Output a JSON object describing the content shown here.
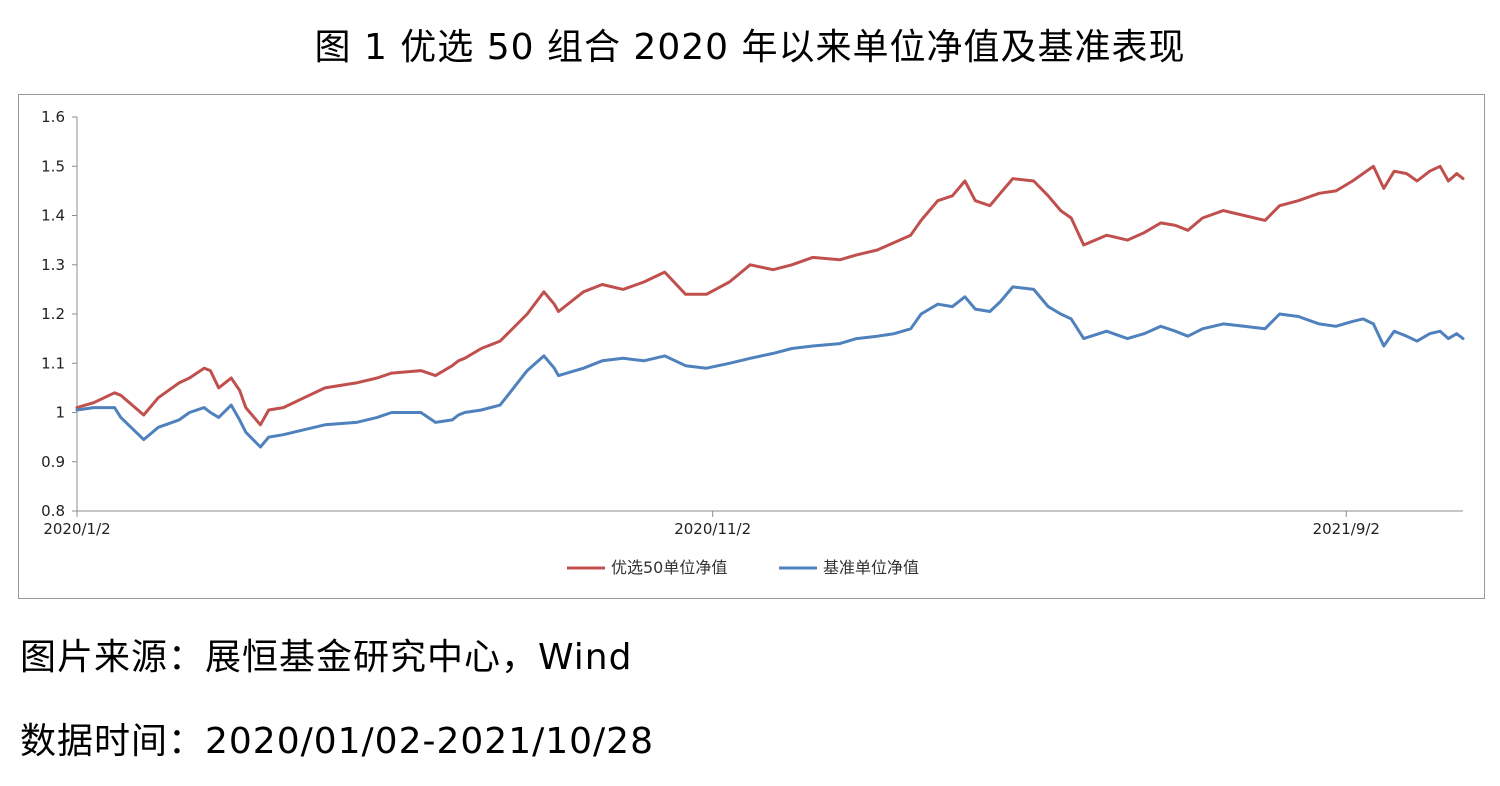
{
  "title": "图 1 优选 50 组合 2020 年以来单位净值及基准表现",
  "source": "图片来源：展恒基金研究中心，Wind",
  "period": "数据时间：2020/01/02-2021/10/28",
  "chart_data": {
    "type": "line",
    "ylim": [
      0.8,
      1.6
    ],
    "yticks": [
      "0.8",
      "0.9",
      "1",
      "1.1",
      "1.2",
      "1.3",
      "1.4",
      "1.5",
      "1.6"
    ],
    "xlim": [
      "2020-01-02",
      "2021-10-28"
    ],
    "xticks": [
      {
        "date": "2020-01-02",
        "label": "2020/1/2"
      },
      {
        "date": "2020-11-02",
        "label": "2020/11/2"
      },
      {
        "date": "2021-09-02",
        "label": "2021/9/2"
      }
    ],
    "grid": false,
    "legend": "bottom",
    "series": [
      {
        "name": "优选50单位净值",
        "color": "#c0504d",
        "points": [
          [
            "2020-01-02",
            1.01
          ],
          [
            "2020-01-10",
            1.02
          ],
          [
            "2020-01-20",
            1.04
          ],
          [
            "2020-01-23",
            1.035
          ],
          [
            "2020-02-03",
            0.995
          ],
          [
            "2020-02-10",
            1.03
          ],
          [
            "2020-02-20",
            1.06
          ],
          [
            "2020-02-25",
            1.07
          ],
          [
            "2020-03-03",
            1.09
          ],
          [
            "2020-03-06",
            1.085
          ],
          [
            "2020-03-10",
            1.05
          ],
          [
            "2020-03-16",
            1.07
          ],
          [
            "2020-03-20",
            1.045
          ],
          [
            "2020-03-23",
            1.01
          ],
          [
            "2020-03-30",
            0.975
          ],
          [
            "2020-04-03",
            1.005
          ],
          [
            "2020-04-10",
            1.01
          ],
          [
            "2020-04-20",
            1.03
          ],
          [
            "2020-04-30",
            1.05
          ],
          [
            "2020-05-15",
            1.06
          ],
          [
            "2020-05-25",
            1.07
          ],
          [
            "2020-06-01",
            1.08
          ],
          [
            "2020-06-15",
            1.085
          ],
          [
            "2020-06-22",
            1.075
          ],
          [
            "2020-06-30",
            1.095
          ],
          [
            "2020-07-03",
            1.105
          ],
          [
            "2020-07-06",
            1.11
          ],
          [
            "2020-07-14",
            1.13
          ],
          [
            "2020-07-23",
            1.145
          ],
          [
            "2020-08-05",
            1.2
          ],
          [
            "2020-08-13",
            1.245
          ],
          [
            "2020-08-18",
            1.22
          ],
          [
            "2020-08-20",
            1.205
          ],
          [
            "2020-09-01",
            1.245
          ],
          [
            "2020-09-10",
            1.26
          ],
          [
            "2020-09-20",
            1.25
          ],
          [
            "2020-09-30",
            1.265
          ],
          [
            "2020-10-10",
            1.285
          ],
          [
            "2020-10-20",
            1.24
          ],
          [
            "2020-10-30",
            1.24
          ],
          [
            "2020-11-10",
            1.265
          ],
          [
            "2020-11-20",
            1.3
          ],
          [
            "2020-12-01",
            1.29
          ],
          [
            "2020-12-10",
            1.3
          ],
          [
            "2020-12-20",
            1.315
          ],
          [
            "2021-01-02",
            1.31
          ],
          [
            "2021-01-10",
            1.32
          ],
          [
            "2021-01-20",
            1.33
          ],
          [
            "2021-01-28",
            1.345
          ],
          [
            "2021-02-05",
            1.36
          ],
          [
            "2021-02-10",
            1.39
          ],
          [
            "2021-02-18",
            1.43
          ],
          [
            "2021-02-25",
            1.44
          ],
          [
            "2021-03-03",
            1.47
          ],
          [
            "2021-03-08",
            1.43
          ],
          [
            "2021-03-15",
            1.42
          ],
          [
            "2021-03-20",
            1.445
          ],
          [
            "2021-03-26",
            1.475
          ],
          [
            "2021-04-05",
            1.47
          ],
          [
            "2021-04-12",
            1.44
          ],
          [
            "2021-04-18",
            1.41
          ],
          [
            "2021-04-23",
            1.395
          ],
          [
            "2021-04-29",
            1.34
          ],
          [
            "2021-05-10",
            1.36
          ],
          [
            "2021-05-20",
            1.35
          ],
          [
            "2021-05-28",
            1.365
          ],
          [
            "2021-06-05",
            1.385
          ],
          [
            "2021-06-12",
            1.38
          ],
          [
            "2021-06-18",
            1.37
          ],
          [
            "2021-06-25",
            1.395
          ],
          [
            "2021-07-05",
            1.41
          ],
          [
            "2021-07-15",
            1.4
          ],
          [
            "2021-07-25",
            1.39
          ],
          [
            "2021-08-01",
            1.42
          ],
          [
            "2021-08-10",
            1.43
          ],
          [
            "2021-08-20",
            1.445
          ],
          [
            "2021-08-28",
            1.45
          ],
          [
            "2021-09-05",
            1.47
          ],
          [
            "2021-09-10",
            1.485
          ],
          [
            "2021-09-15",
            1.5
          ],
          [
            "2021-09-20",
            1.455
          ],
          [
            "2021-09-25",
            1.49
          ],
          [
            "2021-10-01",
            1.485
          ],
          [
            "2021-10-06",
            1.47
          ],
          [
            "2021-10-12",
            1.49
          ],
          [
            "2021-10-17",
            1.5
          ],
          [
            "2021-10-21",
            1.47
          ],
          [
            "2021-10-25",
            1.485
          ],
          [
            "2021-10-28",
            1.475
          ]
        ]
      },
      {
        "name": "基准单位净值",
        "color": "#4f81bd",
        "points": [
          [
            "2020-01-02",
            1.005
          ],
          [
            "2020-01-10",
            1.01
          ],
          [
            "2020-01-20",
            1.01
          ],
          [
            "2020-01-23",
            0.99
          ],
          [
            "2020-02-03",
            0.945
          ],
          [
            "2020-02-10",
            0.97
          ],
          [
            "2020-02-20",
            0.985
          ],
          [
            "2020-02-25",
            1.0
          ],
          [
            "2020-03-03",
            1.01
          ],
          [
            "2020-03-06",
            1.0
          ],
          [
            "2020-03-10",
            0.99
          ],
          [
            "2020-03-16",
            1.015
          ],
          [
            "2020-03-20",
            0.985
          ],
          [
            "2020-03-23",
            0.96
          ],
          [
            "2020-03-30",
            0.93
          ],
          [
            "2020-04-03",
            0.95
          ],
          [
            "2020-04-10",
            0.955
          ],
          [
            "2020-04-20",
            0.965
          ],
          [
            "2020-04-30",
            0.975
          ],
          [
            "2020-05-15",
            0.98
          ],
          [
            "2020-05-25",
            0.99
          ],
          [
            "2020-06-01",
            1.0
          ],
          [
            "2020-06-15",
            1.0
          ],
          [
            "2020-06-22",
            0.98
          ],
          [
            "2020-06-30",
            0.985
          ],
          [
            "2020-07-03",
            0.995
          ],
          [
            "2020-07-06",
            1.0
          ],
          [
            "2020-07-14",
            1.005
          ],
          [
            "2020-07-23",
            1.015
          ],
          [
            "2020-08-05",
            1.085
          ],
          [
            "2020-08-13",
            1.115
          ],
          [
            "2020-08-18",
            1.09
          ],
          [
            "2020-08-20",
            1.075
          ],
          [
            "2020-09-01",
            1.09
          ],
          [
            "2020-09-10",
            1.105
          ],
          [
            "2020-09-20",
            1.11
          ],
          [
            "2020-09-30",
            1.105
          ],
          [
            "2020-10-10",
            1.115
          ],
          [
            "2020-10-20",
            1.095
          ],
          [
            "2020-10-30",
            1.09
          ],
          [
            "2020-11-10",
            1.1
          ],
          [
            "2020-11-20",
            1.11
          ],
          [
            "2020-12-01",
            1.12
          ],
          [
            "2020-12-10",
            1.13
          ],
          [
            "2020-12-20",
            1.135
          ],
          [
            "2021-01-02",
            1.14
          ],
          [
            "2021-01-10",
            1.15
          ],
          [
            "2021-01-20",
            1.155
          ],
          [
            "2021-01-28",
            1.16
          ],
          [
            "2021-02-05",
            1.17
          ],
          [
            "2021-02-10",
            1.2
          ],
          [
            "2021-02-18",
            1.22
          ],
          [
            "2021-02-25",
            1.215
          ],
          [
            "2021-03-03",
            1.235
          ],
          [
            "2021-03-08",
            1.21
          ],
          [
            "2021-03-15",
            1.205
          ],
          [
            "2021-03-20",
            1.225
          ],
          [
            "2021-03-26",
            1.255
          ],
          [
            "2021-04-05",
            1.25
          ],
          [
            "2021-04-12",
            1.215
          ],
          [
            "2021-04-18",
            1.2
          ],
          [
            "2021-04-23",
            1.19
          ],
          [
            "2021-04-29",
            1.15
          ],
          [
            "2021-05-10",
            1.165
          ],
          [
            "2021-05-20",
            1.15
          ],
          [
            "2021-05-28",
            1.16
          ],
          [
            "2021-06-05",
            1.175
          ],
          [
            "2021-06-12",
            1.165
          ],
          [
            "2021-06-18",
            1.155
          ],
          [
            "2021-06-25",
            1.17
          ],
          [
            "2021-07-05",
            1.18
          ],
          [
            "2021-07-15",
            1.175
          ],
          [
            "2021-07-25",
            1.17
          ],
          [
            "2021-08-01",
            1.2
          ],
          [
            "2021-08-10",
            1.195
          ],
          [
            "2021-08-20",
            1.18
          ],
          [
            "2021-08-28",
            1.175
          ],
          [
            "2021-09-05",
            1.185
          ],
          [
            "2021-09-10",
            1.19
          ],
          [
            "2021-09-15",
            1.18
          ],
          [
            "2021-09-20",
            1.135
          ],
          [
            "2021-09-25",
            1.165
          ],
          [
            "2021-10-01",
            1.155
          ],
          [
            "2021-10-06",
            1.145
          ],
          [
            "2021-10-12",
            1.16
          ],
          [
            "2021-10-17",
            1.165
          ],
          [
            "2021-10-21",
            1.15
          ],
          [
            "2021-10-25",
            1.16
          ],
          [
            "2021-10-28",
            1.15
          ]
        ]
      }
    ]
  }
}
